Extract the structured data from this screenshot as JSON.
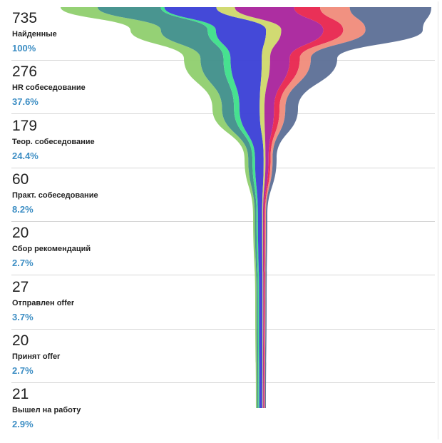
{
  "chart_data": {
    "type": "area",
    "title": "",
    "stages": [
      {
        "count": "735",
        "name": "Найденные",
        "percent": "100%"
      },
      {
        "count": "276",
        "name": "HR собеседование",
        "percent": "37.6%"
      },
      {
        "count": "179",
        "name": "Теор. собеседование",
        "percent": "24.4%"
      },
      {
        "count": "60",
        "name": "Практ. собеседование",
        "percent": "8.2%"
      },
      {
        "count": "20",
        "name": "Сбор рекомендаций",
        "percent": "2.7%"
      },
      {
        "count": "27",
        "name": "Отправлен offer",
        "percent": "3.7%"
      },
      {
        "count": "20",
        "name": "Принят offer",
        "percent": "2.7%"
      },
      {
        "count": "21",
        "name": "Вышел на работу",
        "percent": "2.9%"
      }
    ],
    "values": [
      735,
      276,
      179,
      60,
      20,
      27,
      20,
      21
    ],
    "colors": [
      "#8fcf6e",
      "#3f8f8a",
      "#3ddf8a",
      "#3a3fd6",
      "#cfd86a",
      "#a9239c",
      "#e8254e",
      "#f08b7a",
      "#5c6f96"
    ]
  }
}
